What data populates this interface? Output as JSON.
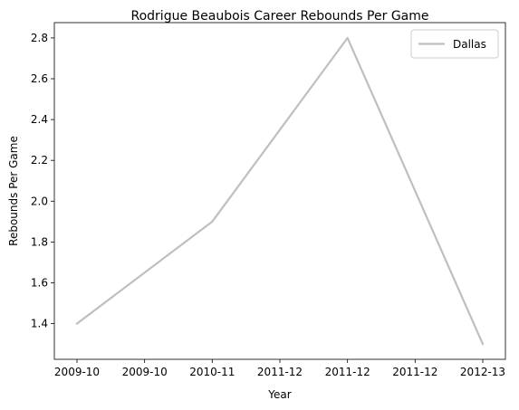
{
  "chart_data": {
    "type": "line",
    "title": "Rodrigue Beaubois Career Rebounds Per Game",
    "xlabel": "Year",
    "ylabel": "Rebounds Per Game",
    "x_tick_labels": [
      "2009-10",
      "2009-10",
      "2010-11",
      "2011-12",
      "2011-12",
      "2011-12",
      "2012-13"
    ],
    "series": [
      {
        "name": "Dallas",
        "color": "#bfbfbf",
        "points": [
          {
            "x": "2009-10",
            "y": 1.4
          },
          {
            "x": "2010-11",
            "y": 1.9
          },
          {
            "x": "2011-12",
            "y": 2.8
          },
          {
            "x": "2012-13",
            "y": 1.3
          }
        ]
      }
    ],
    "y_ticks": [
      1.4,
      1.6,
      1.8,
      2.0,
      2.2,
      2.4,
      2.6,
      2.8
    ],
    "y_tick_labels": [
      "1.4",
      "1.6",
      "1.8",
      "2.0",
      "2.2",
      "2.4",
      "2.6",
      "2.8"
    ],
    "ylim": [
      1.225,
      2.875
    ],
    "grid": false,
    "legend_position": "top-right"
  }
}
